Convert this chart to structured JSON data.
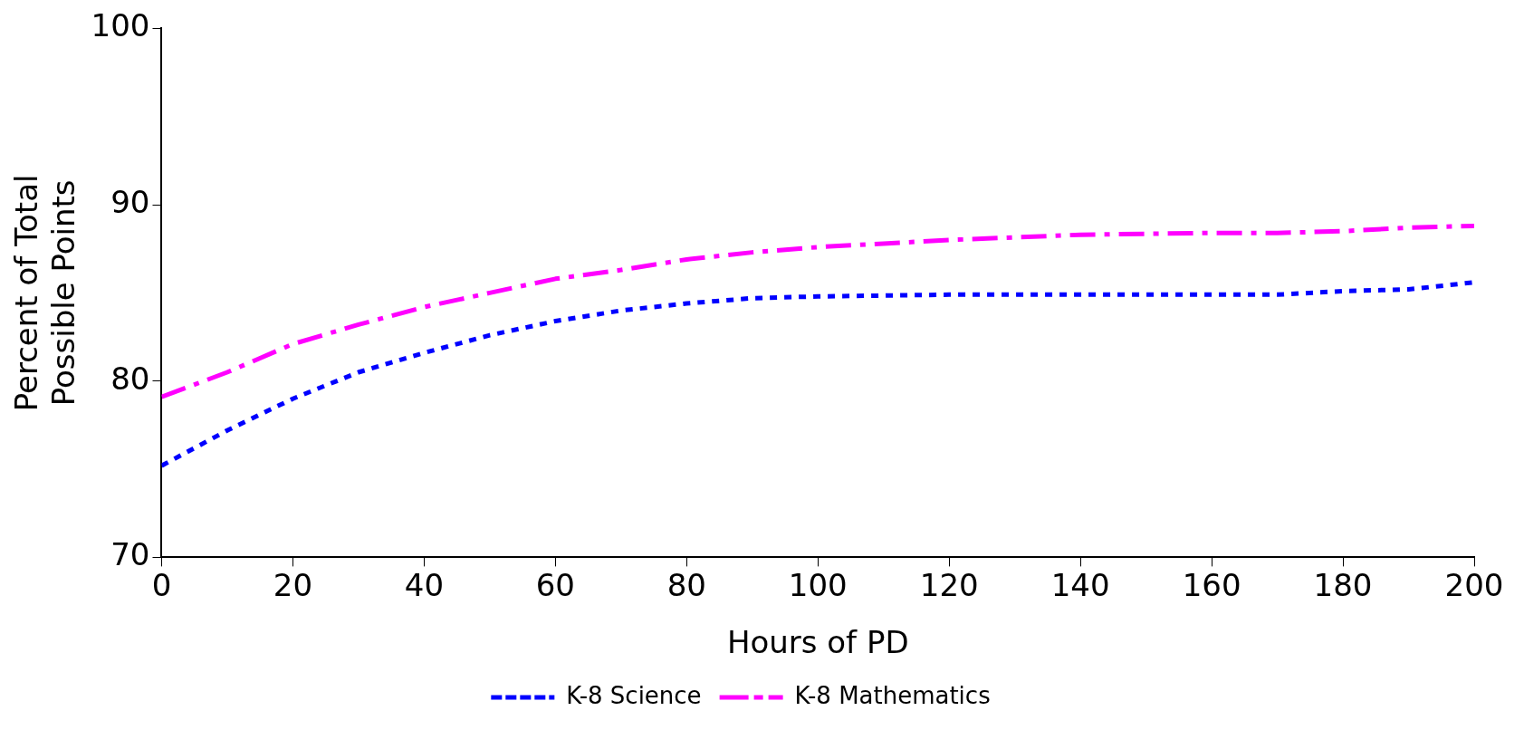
{
  "chart_data": {
    "type": "line",
    "xlabel": "Hours of PD",
    "ylabel": "Percent of Total Possible Points",
    "xlim": [
      0,
      200
    ],
    "xticks": [
      0,
      20,
      40,
      60,
      80,
      100,
      120,
      140,
      160,
      180,
      200
    ],
    "ylim": [
      70,
      100
    ],
    "yticks": [
      70,
      80,
      90,
      100
    ],
    "grid": false,
    "legend": "bottom",
    "marker": "none",
    "series": [
      {
        "name": "K-8 Science",
        "color": "#0000ff",
        "line_style": "dotted",
        "x": [
          0,
          10,
          20,
          30,
          40,
          50,
          60,
          70,
          80,
          90,
          100,
          120,
          140,
          160,
          170,
          180,
          190,
          200
        ],
        "values": [
          75.2,
          77.2,
          79.0,
          80.5,
          81.6,
          82.6,
          83.4,
          84.0,
          84.4,
          84.7,
          84.8,
          84.9,
          84.9,
          84.9,
          84.9,
          85.1,
          85.2,
          85.6
        ]
      },
      {
        "name": "K-8 Mathematics",
        "color": "#ff00ff",
        "line_style": "dashed",
        "x": [
          0,
          10,
          20,
          30,
          40,
          50,
          60,
          70,
          80,
          90,
          100,
          110,
          120,
          140,
          160,
          170,
          180,
          190,
          200
        ],
        "values": [
          79.1,
          80.5,
          82.1,
          83.2,
          84.2,
          85.0,
          85.8,
          86.3,
          86.9,
          87.3,
          87.6,
          87.8,
          88.0,
          88.3,
          88.4,
          88.4,
          88.5,
          88.7,
          88.8
        ]
      }
    ]
  }
}
